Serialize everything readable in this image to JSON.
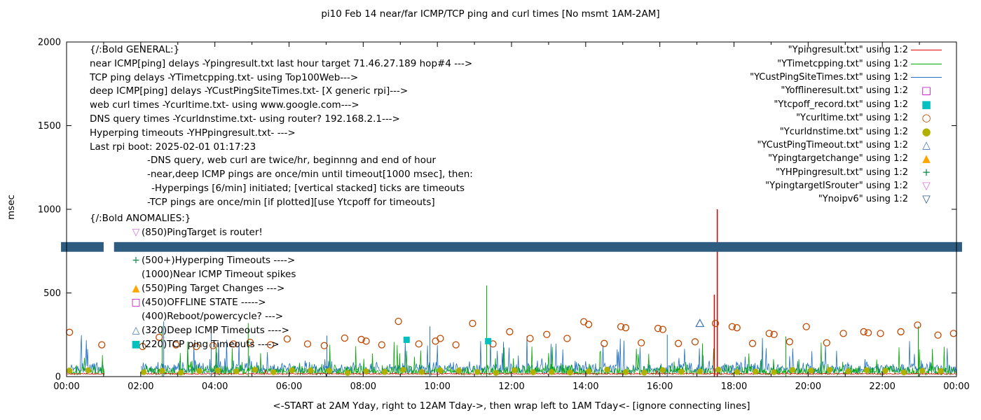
{
  "chart_data": {
    "type": "line",
    "title": "pi10 Feb 14  near/far ICMP/TCP ping and curl times [No msmt 1AM-2AM]",
    "xlabel": "<-START at 2AM Yday, right to 12AM Tday->, then wrap left to 1AM Tday<- [ignore connecting lines]",
    "ylabel": "msec",
    "ylim": [
      0,
      2000
    ],
    "xlim_hours": [
      0,
      24
    ],
    "x_tick_hours": [
      0,
      2,
      4,
      6,
      8,
      10,
      12,
      14,
      16,
      18,
      20,
      22,
      24
    ],
    "x_tick_labels": [
      "00:00",
      "02:00",
      "04:00",
      "06:00",
      "08:00",
      "10:00",
      "12:00",
      "14:00",
      "16:00",
      "18:00",
      "20:00",
      "22:00",
      "00:00"
    ],
    "y_ticks": [
      0,
      500,
      1000,
      1500,
      2000
    ],
    "grid": false,
    "legend_position": "top-right",
    "no_measurement_gap_hours": [
      1.03,
      2.0
    ],
    "legend": [
      {
        "label": "\"Ypingresult.txt\" using 1:2",
        "sample": "line",
        "color": "#e00000"
      },
      {
        "label": "\"YTimetcpping.txt\" using 1:2",
        "sample": "line",
        "color": "#00a800"
      },
      {
        "label": "\"YCustPingSiteTimes.txt\" using 1:2",
        "sample": "line",
        "color": "#2070c0"
      },
      {
        "label": "\"Yofflineresult.txt\" using 1:2",
        "sample": "open-square",
        "color": "#c000c0"
      },
      {
        "label": "\"Ytcpoff_record.txt\" using 1:2",
        "sample": "filled-square",
        "color": "#00c0c0"
      },
      {
        "label": "\"Ycurltime.txt\" using 1:2",
        "sample": "open-circle",
        "color": "#c04800"
      },
      {
        "label": "\"Ycurldnstime.txt\" using 1:2",
        "sample": "filled-circle",
        "color": "#b0b000"
      },
      {
        "label": "\"YCustPingTimeout.txt\" using 1:2",
        "sample": "open-up-triangle",
        "color": "#4878b8"
      },
      {
        "label": "\"Ypingtargetchange\" using 1:2",
        "sample": "filled-up-triangle",
        "color": "#ffa500"
      },
      {
        "label": "\"YHPpingresult.txt\" using 1:2",
        "sample": "plus",
        "color": "#008a45"
      },
      {
        "label": "\"YpingtargetISrouter\" using 1:2",
        "sample": "open-down-triangle",
        "color": "#d878d8"
      },
      {
        "label": "\"Ynoipv6\" using 1:2",
        "sample": "open-down-triangle",
        "color": "#2e5c80"
      }
    ],
    "noise_series": [
      {
        "name": "YCustPingSiteTimes.txt",
        "color": "#2070c0",
        "base": 20,
        "amp": 80,
        "spike_prob": 0.04,
        "spike_max": 180,
        "seed": 99
      },
      {
        "name": "YTimetcpping.txt",
        "color": "#00a800",
        "base": 10,
        "amp": 70,
        "spike_prob": 0.05,
        "spike_max": 160,
        "seed": 1337
      },
      {
        "name": "Ypingresult.txt",
        "color": "#e00000",
        "base": 14,
        "amp": 8,
        "spike_prob": 0.004,
        "spike_max": 25,
        "seed": 42
      }
    ],
    "red_spikes": [
      {
        "x": 17.47,
        "y": 490
      },
      {
        "x": 17.55,
        "y": 1000
      }
    ],
    "green_spikes": [
      {
        "x": 2.58,
        "y": 300
      },
      {
        "x": 4.9,
        "y": 320
      },
      {
        "x": 11.33,
        "y": 545
      },
      {
        "x": 19.4,
        "y": 240
      },
      {
        "x": 22.97,
        "y": 300
      }
    ],
    "blue_spikes": [
      {
        "x": 2.62,
        "y": 330
      },
      {
        "x": 3.9,
        "y": 260
      },
      {
        "x": 7.02,
        "y": 245
      },
      {
        "x": 9.8,
        "y": 300
      },
      {
        "x": 16.2,
        "y": 250
      }
    ],
    "curl_points": [
      [
        0.08,
        265
      ],
      [
        0.95,
        190
      ],
      [
        2.05,
        180
      ],
      [
        2.5,
        235
      ],
      [
        2.95,
        190
      ],
      [
        3.5,
        180
      ],
      [
        3.95,
        185
      ],
      [
        4.5,
        195
      ],
      [
        4.95,
        205
      ],
      [
        5.5,
        190
      ],
      [
        5.95,
        225
      ],
      [
        6.5,
        195
      ],
      [
        6.95,
        185
      ],
      [
        7.5,
        230
      ],
      [
        7.95,
        222
      ],
      [
        8.08,
        212
      ],
      [
        8.5,
        190
      ],
      [
        8.95,
        330
      ],
      [
        9.5,
        195
      ],
      [
        9.95,
        212
      ],
      [
        10.08,
        228
      ],
      [
        10.5,
        190
      ],
      [
        10.95,
        318
      ],
      [
        11.5,
        195
      ],
      [
        11.95,
        268
      ],
      [
        12.5,
        228
      ],
      [
        12.95,
        252
      ],
      [
        13.5,
        228
      ],
      [
        13.95,
        328
      ],
      [
        14.08,
        312
      ],
      [
        14.5,
        198
      ],
      [
        14.95,
        298
      ],
      [
        15.08,
        292
      ],
      [
        15.5,
        202
      ],
      [
        15.95,
        288
      ],
      [
        16.08,
        282
      ],
      [
        16.5,
        198
      ],
      [
        16.95,
        208
      ],
      [
        17.5,
        318
      ],
      [
        17.95,
        298
      ],
      [
        18.08,
        292
      ],
      [
        18.5,
        198
      ],
      [
        18.95,
        258
      ],
      [
        19.08,
        252
      ],
      [
        19.5,
        208
      ],
      [
        19.95,
        298
      ],
      [
        20.5,
        202
      ],
      [
        20.95,
        258
      ],
      [
        21.5,
        268
      ],
      [
        21.62,
        262
      ],
      [
        21.95,
        258
      ],
      [
        22.5,
        268
      ],
      [
        22.95,
        308
      ],
      [
        23.5,
        248
      ],
      [
        23.92,
        258
      ]
    ],
    "dns_points": {
      "interval_hours": 0.5,
      "base": 22,
      "amp": 20,
      "seed": 5
    },
    "tcpoff_points": [
      {
        "x": 9.17,
        "y": 220
      },
      {
        "x": 11.37,
        "y": 212
      }
    ],
    "custping_timeout_points": [
      {
        "x": 17.08,
        "y": 318
      }
    ],
    "noipv6_bar": {
      "y": 775,
      "thickness_msec": 58,
      "x_from": -0.15,
      "x_to": 24.15,
      "gap": [
        1.0,
        1.28
      ],
      "color": "#2e5c80"
    }
  },
  "annotations": {
    "general_lines": [
      {
        "text": "{/:Bold GENERAL:}",
        "indent": 0
      },
      {
        "text": "near ICMP[ping] delays -Ypingresult.txt last hour target 71.46.27.189 hop#4 --->",
        "indent": 0
      },
      {
        "text": "TCP ping delays -YTimetcpping.txt- using Top100Web--->",
        "indent": 0
      },
      {
        "text": "deep ICMP[ping] delays -YCustPingSiteTimes.txt- [X generic rpi]--->",
        "indent": 0
      },
      {
        "text": "web curl times -Ycurltime.txt- using www.google.com--->",
        "indent": 0
      },
      {
        "text": "DNS query times -Ycurldnstime.txt- using router? 192.168.2.1--->",
        "indent": 0
      },
      {
        "text": "Hyperping timeouts -YHPpingresult.txt- --->",
        "indent": 0
      },
      {
        "text": "Last rpi boot: 2025-02-01 01:17:23",
        "indent": 0
      },
      {
        "text": "-DNS query, web curl are twice/hr, beginnng and end of hour",
        "indent": 1
      },
      {
        "text": "-near,deep ICMP pings are once/min until timeout[1000 msec], then:",
        "indent": 1
      },
      {
        "text": "-Hyperpings [6/min] initiated; [vertical stacked] ticks are timeouts",
        "indent": 2
      },
      {
        "text": "-TCP pings are once/min [if plotted][use Ytcpoff for timeouts]",
        "indent": 1
      }
    ],
    "anomalies_header": "{/:Bold ANOMALIES:}",
    "anomalies_lines": [
      {
        "marker": "open-down-triangle",
        "color": "#d878d8",
        "text": "(850)PingTarget is router!"
      },
      {
        "marker": "",
        "color": "",
        "text": ""
      },
      {
        "marker": "plus",
        "color": "#008a45",
        "text": "(500+)Hyperping Timeouts ---->"
      },
      {
        "marker": "",
        "color": "",
        "text": "(1000)Near ICMP Timeout spikes"
      },
      {
        "marker": "filled-up-triangle",
        "color": "#ffa500",
        "text": "(550)Ping Target Changes --->"
      },
      {
        "marker": "open-square",
        "color": "#c000c0",
        "text": "(450)OFFLINE STATE ----->"
      },
      {
        "marker": "",
        "color": "",
        "text": "(400)Reboot/powercycle? --->"
      },
      {
        "marker": "open-up-triangle",
        "color": "#4878b8",
        "text": "(320)Deep ICMP Timeouts ---->"
      },
      {
        "marker": "filled-square",
        "color": "#00c0c0",
        "text": "(220)TCP ping Timeouts ---->"
      }
    ]
  }
}
